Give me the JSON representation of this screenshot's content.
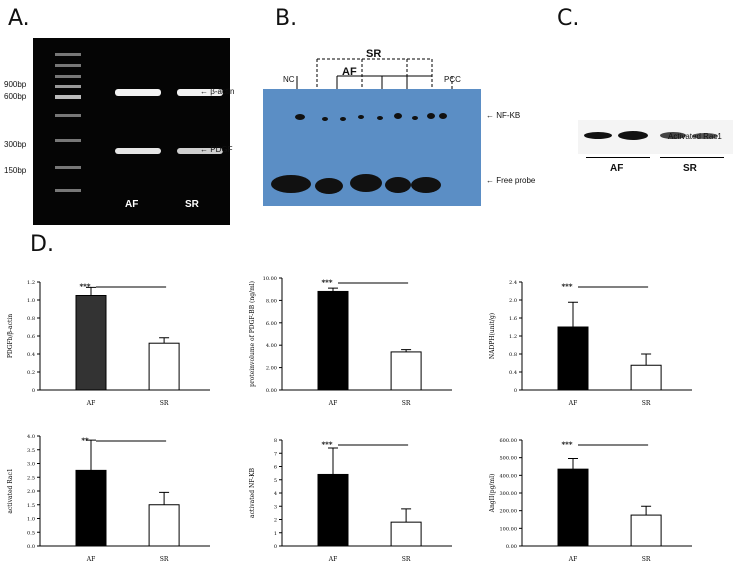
{
  "panels": {
    "a": {
      "letter": "A.",
      "markers": [
        "900bp",
        "600bp",
        "300bp",
        "150bp"
      ],
      "band_labels": [
        "β-actin",
        "PDGF"
      ],
      "lanes": [
        "AF",
        "SR"
      ]
    },
    "b": {
      "letter": "B.",
      "groups": [
        "SR",
        "AF"
      ],
      "lanes": [
        "NC",
        "PCC"
      ],
      "band_labels": [
        "NF-KB",
        "Free probe"
      ]
    },
    "c": {
      "letter": "C.",
      "band_label": "Activated Rac1",
      "groups": [
        "AF",
        "SR"
      ]
    },
    "d": {
      "letter": "D."
    }
  },
  "chart_data": [
    {
      "type": "bar",
      "categories": [
        "AF",
        "SR"
      ],
      "values": [
        1.05,
        0.52
      ],
      "errors": [
        0.09,
        0.06
      ],
      "ylabel": "PDGFb/β-actin",
      "ylim": [
        0,
        1.2
      ],
      "yticks": [
        "0",
        "0.2",
        "0.4",
        "0.6",
        "0.8",
        "1.0",
        "1.2"
      ],
      "sig": "***",
      "fills": [
        "#333333",
        "#ffffff"
      ]
    },
    {
      "type": "bar",
      "categories": [
        "AF",
        "SR"
      ],
      "values": [
        8.8,
        3.4
      ],
      "errors": [
        0.3,
        0.2
      ],
      "ylabel": "proteinvolume of PDGF-BB (ng/ml)",
      "ylim": [
        0,
        10
      ],
      "yticks": [
        "0.00",
        "2.00",
        "4.00",
        "6.00",
        "8.00",
        "10.00"
      ],
      "sig": "***",
      "fills": [
        "#000000",
        "#ffffff"
      ]
    },
    {
      "type": "bar",
      "categories": [
        "AF",
        "SR"
      ],
      "values": [
        1.4,
        0.55
      ],
      "errors": [
        0.55,
        0.25
      ],
      "ylabel": "NADPH(unit/g)",
      "ylim": [
        0,
        2.4
      ],
      "yticks": [
        "0",
        "0.4",
        "0.8",
        "1.2",
        "1.6",
        "2.0",
        "2.4"
      ],
      "sig": "***",
      "fills": [
        "#000000",
        "#ffffff"
      ]
    },
    {
      "type": "bar",
      "categories": [
        "AF",
        "SR"
      ],
      "values": [
        2.75,
        1.5
      ],
      "errors": [
        1.1,
        0.45
      ],
      "ylabel": "activated Rac1",
      "ylim": [
        0,
        4
      ],
      "yticks": [
        "0.0",
        "0.5",
        "1.0",
        "1.5",
        "2.0",
        "2.5",
        "3.0",
        "3.5",
        "4.0"
      ],
      "sig": "**",
      "fills": [
        "#000000",
        "#ffffff"
      ]
    },
    {
      "type": "bar",
      "categories": [
        "AF",
        "SR"
      ],
      "values": [
        5.4,
        1.8
      ],
      "errors": [
        2.0,
        1.0
      ],
      "ylabel": "activated NF-KB",
      "ylim": [
        0,
        8
      ],
      "yticks": [
        "0",
        "1",
        "2",
        "3",
        "4",
        "5",
        "6",
        "7",
        "8"
      ],
      "sig": "***",
      "fills": [
        "#000000",
        "#ffffff"
      ]
    },
    {
      "type": "bar",
      "categories": [
        "AF",
        "SR"
      ],
      "values": [
        435,
        175
      ],
      "errors": [
        60,
        50
      ],
      "ylabel": "AngII(pg/ml)",
      "ylim": [
        0,
        600
      ],
      "yticks": [
        "0.00",
        "100.00",
        "200.00",
        "300.00",
        "400.00",
        "500.00",
        "600.00"
      ],
      "sig": "***",
      "fills": [
        "#000000",
        "#ffffff"
      ]
    }
  ]
}
